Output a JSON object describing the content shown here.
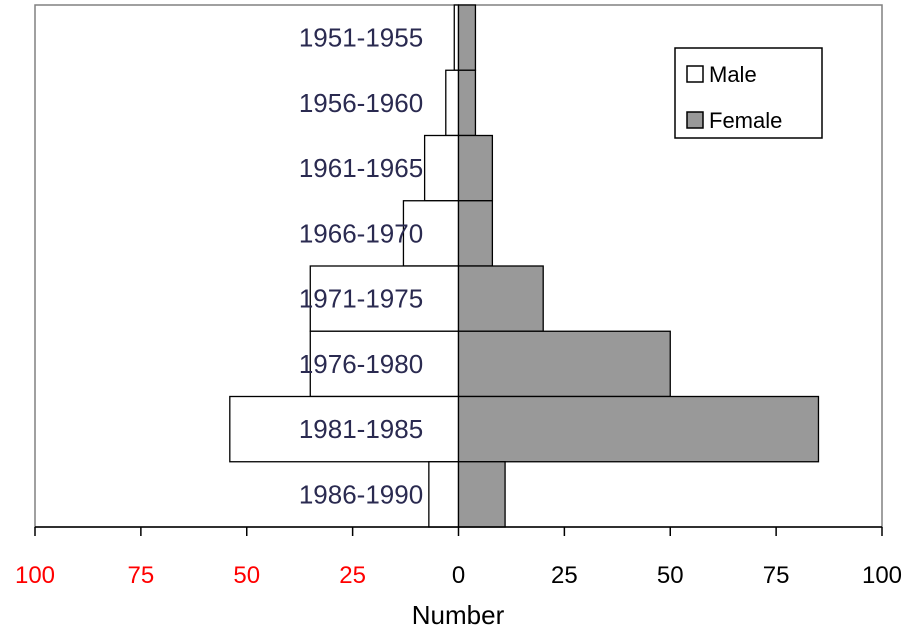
{
  "chart_data": {
    "type": "bar",
    "orientation": "horizontal-population-pyramid",
    "categories": [
      "1951-1955",
      "1956-1960",
      "1961-1965",
      "1966-1970",
      "1971-1975",
      "1976-1980",
      "1981-1985",
      "1986-1990"
    ],
    "series": [
      {
        "name": "Male",
        "values": [
          1,
          3,
          8,
          13,
          35,
          35,
          54,
          7
        ],
        "color": "#ffffff"
      },
      {
        "name": "Female",
        "values": [
          4,
          4,
          8,
          8,
          20,
          50,
          85,
          11
        ],
        "color": "#999999"
      }
    ],
    "xlabel": "Number",
    "xlim": [
      -100,
      100
    ],
    "x_ticks": [
      "100",
      "75",
      "50",
      "25",
      "0",
      "25",
      "50",
      "75",
      "100"
    ],
    "negative_tick_color": "#ff0000",
    "positive_tick_color": "#000000",
    "grid": false,
    "legend_position": "top-right"
  }
}
